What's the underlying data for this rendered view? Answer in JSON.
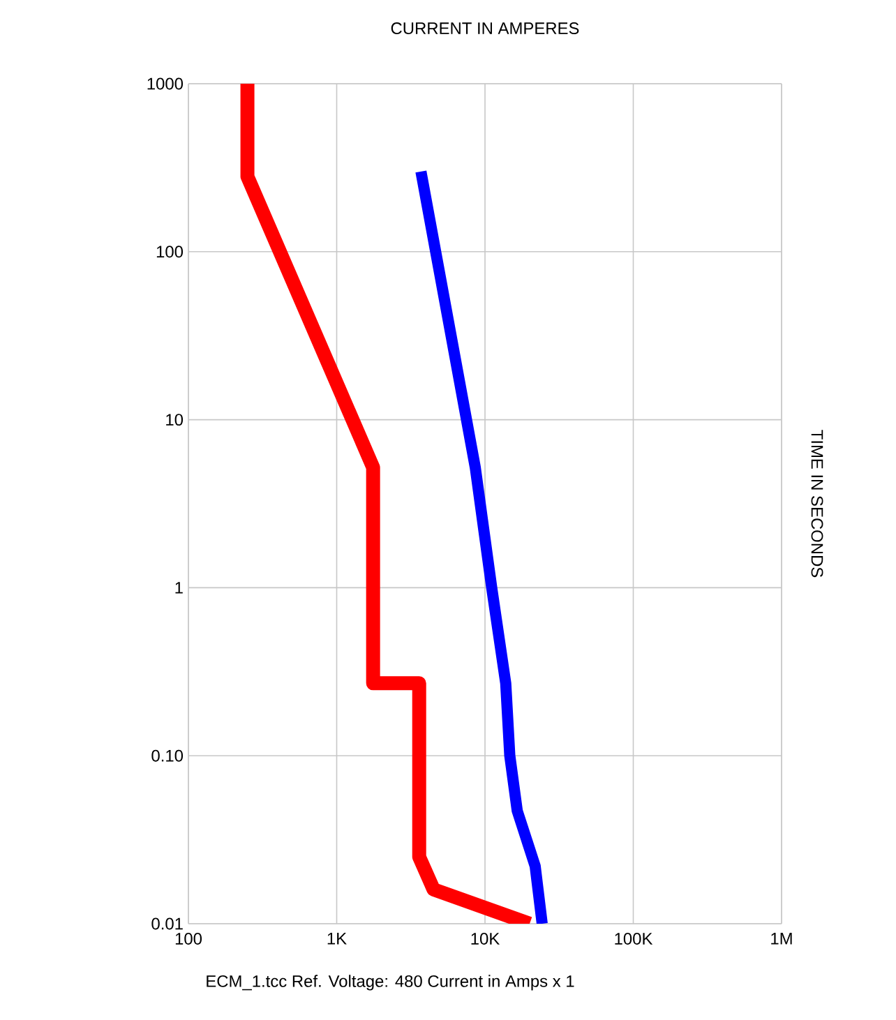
{
  "chart_data": {
    "type": "line",
    "title": "CURRENT IN AMPERES",
    "ylabel": "TIME IN SECONDS",
    "annotations": [
      "ECM_1.tcc   Ref. Voltage: 480   Current in Amps x 1"
    ],
    "log": "xy",
    "grid": true,
    "marker": "none",
    "line_style": "solid",
    "xlim": [
      100,
      1000000
    ],
    "ylim": [
      0.01,
      1000
    ],
    "xticks": [
      {
        "value": 100,
        "label": "100"
      },
      {
        "value": 1000,
        "label": "1K"
      },
      {
        "value": 10000,
        "label": "10K"
      },
      {
        "value": 100000,
        "label": "100K"
      },
      {
        "value": 1000000,
        "label": "1M"
      }
    ],
    "yticks": [
      0.01,
      {
        "value": 0.1,
        "label": "0.10"
      },
      1,
      10,
      100,
      1000
    ],
    "series": [
      {
        "color": "#ff0000",
        "x": [
          250,
          250,
          1760,
          1760,
          3600,
          3600,
          4500,
          20000
        ],
        "values": [
          1000,
          280,
          5.2,
          0.27,
          0.27,
          0.025,
          0.016,
          0.01
        ]
      },
      {
        "color": "#0000ff",
        "x": [
          3700,
          8600,
          11100,
          13800,
          14700,
          16500,
          21800,
          24300
        ],
        "values": [
          300,
          5.2,
          1,
          0.27,
          0.1,
          0.047,
          0.022,
          0.01
        ]
      }
    ]
  }
}
